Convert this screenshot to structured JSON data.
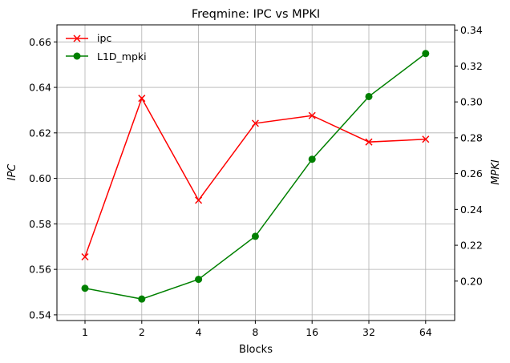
{
  "chart_data": {
    "type": "line",
    "title": "Freqmine: IPC vs MPKI",
    "xlabel": "Blocks",
    "ylabel_left": "IPC",
    "ylabel_right": "MPKI",
    "categories": [
      "1",
      "2",
      "4",
      "8",
      "16",
      "32",
      "64"
    ],
    "ylim_left": [
      0.5375,
      0.6675
    ],
    "ylim_right": [
      0.178,
      0.343
    ],
    "yticks_left": [
      "0.54",
      "0.56",
      "0.58",
      "0.60",
      "0.62",
      "0.64",
      "0.66"
    ],
    "yticks_right": [
      "0.20",
      "0.22",
      "0.24",
      "0.26",
      "0.28",
      "0.30",
      "0.32",
      "0.34"
    ],
    "grid": true,
    "legend_position": "top-left",
    "series": [
      {
        "name": "ipc",
        "axis": "left",
        "marker": "x",
        "color": "#ff0000",
        "values": [
          0.5655,
          0.6352,
          0.5904,
          0.6242,
          0.6276,
          0.616,
          0.6172
        ]
      },
      {
        "name": "L1D_mpki",
        "axis": "right",
        "marker": "o",
        "color": "#008000",
        "values": [
          0.196,
          0.19,
          0.201,
          0.225,
          0.268,
          0.303,
          0.327
        ]
      }
    ]
  }
}
